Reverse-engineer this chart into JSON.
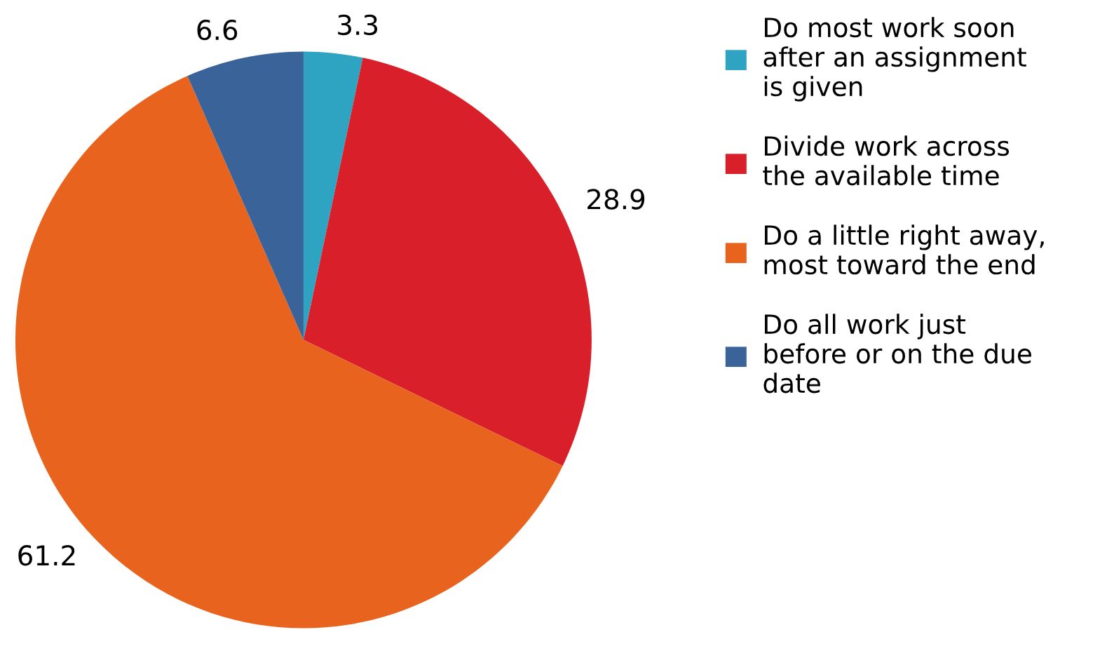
{
  "chart_data": {
    "type": "pie",
    "categories": [
      "Do most work soon\nafter an assignment\nis given",
      "Divide work across\nthe available time",
      "Do a little right away,\nmost toward the end",
      "Do all work just\nbefore or on the due\ndate"
    ],
    "values": [
      3.3,
      28.9,
      61.2,
      6.6
    ],
    "colors": [
      "#2ea3c2",
      "#d9202a",
      "#e8641e",
      "#3a6399"
    ],
    "data_labels": true,
    "legend": "right"
  }
}
